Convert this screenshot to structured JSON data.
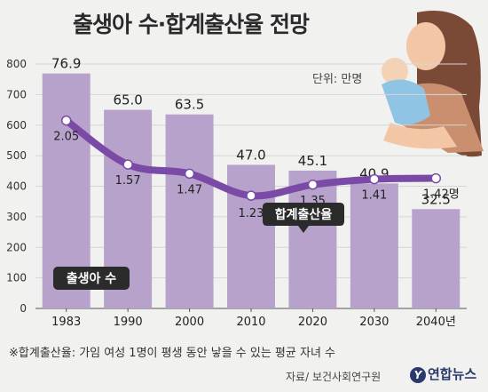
{
  "title": "출생아 수·합계출산율 전망",
  "unit": "단위: 만명",
  "footnote": "※합계출산율: 가임 여성 1명이 평생 동안 낳을 수 있는 평균 자녀 수",
  "source": "자료/ 보건사회연구원",
  "logo_text": "연합뉴스",
  "chart_data": {
    "type": "bar",
    "categories": [
      "1983",
      "1990",
      "2000",
      "2010",
      "2020",
      "2030",
      "2040년"
    ],
    "ylim": [
      0,
      800
    ],
    "yticks": [
      0,
      100,
      200,
      300,
      400,
      500,
      600,
      700,
      800
    ],
    "series": [
      {
        "name": "출생아 수",
        "type": "bar",
        "values": [
          76.9,
          65.0,
          63.5,
          47.0,
          45.1,
          40.9,
          32.5
        ],
        "labels": [
          "76.9",
          "65.0",
          "63.5",
          "47.0",
          "45.1",
          "40.9",
          "32.5"
        ],
        "color": "#b6a2cb"
      },
      {
        "name": "합계출산율",
        "type": "line",
        "values": [
          2.05,
          1.57,
          1.47,
          1.23,
          1.35,
          1.41,
          1.42
        ],
        "labels": [
          "2.05",
          "1.57",
          "1.47",
          "1.23",
          "1.35",
          "1.41",
          "1.42명"
        ],
        "color": "#7b4aa6"
      }
    ]
  }
}
